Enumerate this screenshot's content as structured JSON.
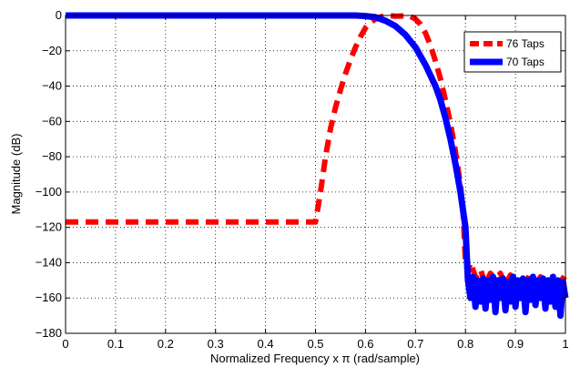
{
  "chart_data": {
    "type": "line",
    "title": "",
    "xlabel": "Normalized Frequency x π (rad/sample)",
    "ylabel": "Magnitude (dB)",
    "xlim": [
      0,
      1
    ],
    "ylim": [
      -180,
      0
    ],
    "xticks": [
      0,
      0.1,
      0.2,
      0.3,
      0.4,
      0.5,
      0.6,
      0.7,
      0.8,
      0.9,
      1
    ],
    "xtick_labels": [
      "0",
      "0.1",
      "0.2",
      "0.3",
      "0.4",
      "0.5",
      "0.6",
      "0.7",
      "0.8",
      "0.9",
      "1"
    ],
    "yticks": [
      0,
      -20,
      -40,
      -60,
      -80,
      -100,
      -120,
      -140,
      -160,
      -180
    ],
    "ytick_labels": [
      "0",
      "−20",
      "−40",
      "−60",
      "−80",
      "−100",
      "−120",
      "−140",
      "−160",
      "−180"
    ],
    "grid": true,
    "grid_style": "dotted",
    "legend_position": "top-right",
    "series": [
      {
        "name": "76 Taps",
        "color": "#ff0000",
        "style": "dashed",
        "x": [
          0,
          0.1,
          0.2,
          0.3,
          0.4,
          0.49,
          0.5,
          0.51,
          0.52,
          0.53,
          0.54,
          0.55,
          0.56,
          0.57,
          0.58,
          0.59,
          0.6,
          0.61,
          0.62,
          0.63,
          0.64,
          0.65,
          0.66,
          0.67,
          0.68,
          0.69,
          0.7,
          0.71,
          0.72,
          0.73,
          0.74,
          0.75,
          0.76,
          0.77,
          0.78,
          0.79,
          0.795,
          0.8,
          0.805,
          0.81,
          0.82,
          0.83,
          0.84,
          0.85,
          0.86,
          0.87,
          0.88,
          0.89,
          0.9,
          0.91,
          0.92,
          0.93,
          0.94,
          0.95,
          0.96,
          0.97,
          0.98,
          0.99,
          1.0
        ],
        "y": [
          -117,
          -117,
          -117,
          -117,
          -117,
          -117,
          -117,
          -100,
          -80,
          -64,
          -52,
          -42,
          -33,
          -25,
          -18,
          -12,
          -7,
          -4,
          -2,
          -0.8,
          -0.3,
          -0.2,
          -0.4,
          -0.3,
          -0.2,
          -0.5,
          -2,
          -5,
          -10,
          -17,
          -26,
          -36,
          -48,
          -61,
          -77,
          -96,
          -110,
          -140,
          -145,
          -140,
          -148,
          -144,
          -152,
          -146,
          -150,
          -146,
          -153,
          -147,
          -155,
          -148,
          -152,
          -146,
          -154,
          -148,
          -151,
          -147,
          -153,
          -148,
          -150
        ]
      },
      {
        "name": "70 Taps",
        "color": "#0000ff",
        "style": "solid",
        "x": [
          0,
          0.1,
          0.2,
          0.3,
          0.4,
          0.5,
          0.55,
          0.58,
          0.6,
          0.62,
          0.64,
          0.66,
          0.68,
          0.7,
          0.72,
          0.74,
          0.75,
          0.76,
          0.77,
          0.78,
          0.79,
          0.8,
          0.805,
          0.81,
          0.815,
          0.82,
          0.825,
          0.83,
          0.835,
          0.84,
          0.845,
          0.85,
          0.855,
          0.86,
          0.865,
          0.87,
          0.875,
          0.88,
          0.885,
          0.89,
          0.895,
          0.9,
          0.905,
          0.91,
          0.915,
          0.92,
          0.925,
          0.93,
          0.935,
          0.94,
          0.945,
          0.95,
          0.955,
          0.96,
          0.965,
          0.97,
          0.975,
          0.98,
          0.985,
          0.99,
          0.995,
          1.0
        ],
        "y": [
          0,
          0,
          0,
          0,
          0,
          0,
          0,
          0,
          -0.3,
          -1,
          -3,
          -6,
          -11,
          -18,
          -28,
          -40,
          -48,
          -58,
          -70,
          -84,
          -100,
          -120,
          -150,
          -160,
          -148,
          -165,
          -150,
          -162,
          -149,
          -166,
          -150,
          -161,
          -148,
          -168,
          -150,
          -160,
          -149,
          -167,
          -151,
          -162,
          -148,
          -165,
          -150,
          -160,
          -149,
          -168,
          -150,
          -161,
          -148,
          -164,
          -150,
          -160,
          -149,
          -166,
          -150,
          -162,
          -148,
          -165,
          -150,
          -170,
          -151,
          -160
        ]
      }
    ]
  }
}
